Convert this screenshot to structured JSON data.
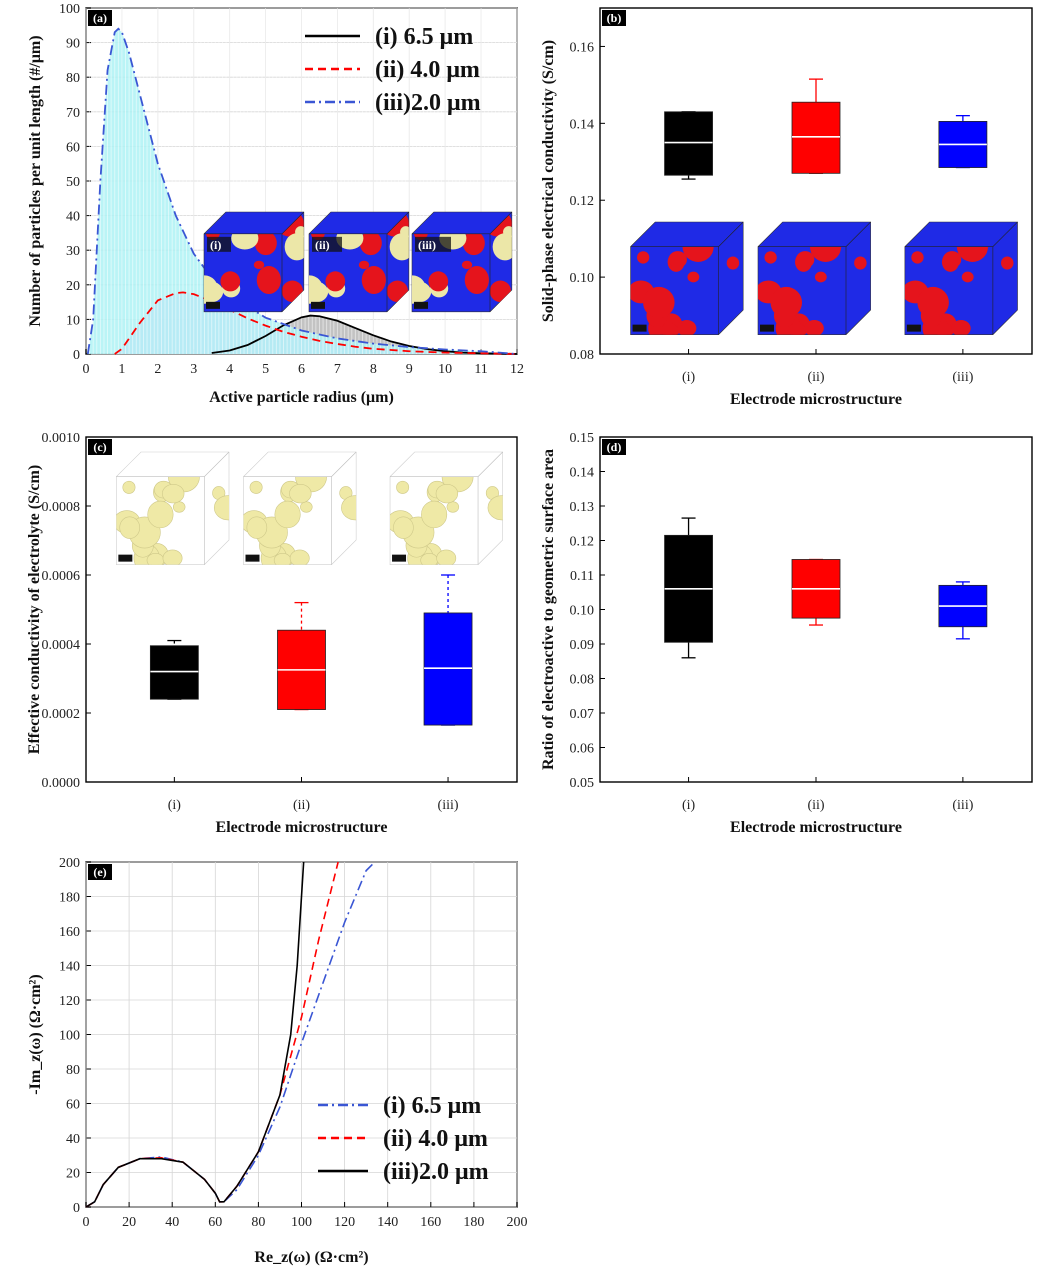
{
  "colors": {
    "black": "#000000",
    "red": "#ff0000",
    "blue": "#0000ff",
    "blue_line": "#3a56d4",
    "cyan_fill": "#aef2f4",
    "purple_fill": "#e3b8f2",
    "gray_fill": "#b9b9b9",
    "cube_blue": "#1f2ae6",
    "cube_red": "#e5141c",
    "cube_cream": "#ece7a8"
  },
  "chart_data": [
    {
      "panel": "a",
      "tag": "(a)",
      "type": "area",
      "xlabel": "Active particle radius (μm)",
      "ylabel": "Number of particles per unit length  (#/μm)",
      "xlim": [
        0,
        12
      ],
      "ylim": [
        0,
        100
      ],
      "xticks": [
        "0",
        "1",
        "2",
        "3",
        "4",
        "5",
        "6",
        "7",
        "8",
        "9",
        "10",
        "11",
        "12"
      ],
      "yticks": [
        "0",
        "10",
        "20",
        "30",
        "40",
        "50",
        "60",
        "70",
        "80",
        "90",
        "100"
      ],
      "legend_position": "top-right",
      "inset_labels": [
        "(i)",
        "(ii)",
        "(iii)"
      ],
      "series": [
        {
          "name": "(i)  6.5 μm",
          "style": "solid",
          "color": "#000000",
          "fill": "#b9b9b9",
          "x": [
            3.5,
            4.0,
            4.5,
            5.0,
            5.5,
            6.0,
            6.25,
            6.5,
            7.0,
            7.5,
            8.0,
            8.5,
            9.0,
            9.5,
            10.0,
            10.5,
            11.0,
            12.0
          ],
          "y": [
            0.3,
            1,
            2.6,
            5.2,
            8.3,
            10.6,
            11.1,
            10.9,
            9.6,
            7.5,
            5.4,
            3.6,
            2.3,
            1.4,
            0.8,
            0.4,
            0.2,
            0
          ]
        },
        {
          "name": "(ii) 4.0 μm",
          "style": "dashed",
          "color": "#ff0000",
          "fill": "#e3b8f2",
          "x": [
            0.8,
            1.0,
            1.5,
            2.0,
            2.5,
            2.7,
            3.0,
            3.5,
            4.0,
            4.5,
            5.0,
            5.5,
            6.0,
            6.5,
            7.0,
            7.5,
            8.0,
            9.0,
            10.0,
            11.0,
            12.0
          ],
          "y": [
            0,
            1.5,
            9,
            15.5,
            17.6,
            17.8,
            17.3,
            15.3,
            12.8,
            10.3,
            8.2,
            6.4,
            5.0,
            3.8,
            2.9,
            2.1,
            1.5,
            0.8,
            0.4,
            0.2,
            0
          ]
        },
        {
          "name": "(iii)2.0 μm",
          "style": "dashdot",
          "color": "#3a56d4",
          "fill": "#aef2f4",
          "x": [
            0.05,
            0.2,
            0.4,
            0.6,
            0.8,
            0.9,
            1.0,
            1.2,
            1.5,
            2.0,
            2.5,
            3.0,
            3.5,
            4.0,
            5.0,
            6.0,
            7.0,
            8.0,
            9.0,
            10.0,
            11.0,
            12.0
          ],
          "y": [
            0,
            10,
            50,
            82,
            93,
            94,
            93,
            87,
            75,
            55,
            40,
            29,
            22,
            17,
            10.5,
            6.8,
            4.5,
            3.0,
            2.0,
            1.3,
            0.8,
            0
          ]
        }
      ]
    },
    {
      "panel": "b",
      "tag": "(b)",
      "type": "box",
      "xlabel": "Electrode microstructure",
      "ylabel": "Solid-phase electrical conductivity (S/cm)",
      "ylim": [
        0.08,
        0.17
      ],
      "yticks": [
        "0.08",
        "0.10",
        "0.12",
        "0.14",
        "0.16"
      ],
      "categories": [
        "(i)",
        "(ii)",
        "(iii)"
      ],
      "boxes": [
        {
          "min": 0.1255,
          "q1": 0.1265,
          "median": 0.135,
          "q3": 0.143,
          "max": 0.143,
          "color": "#000000"
        },
        {
          "min": 0.127,
          "q1": 0.127,
          "median": 0.1365,
          "q3": 0.1455,
          "max": 0.1515,
          "color": "#ff0000"
        },
        {
          "min": 0.1285,
          "q1": 0.1285,
          "median": 0.1345,
          "q3": 0.1405,
          "max": 0.142,
          "color": "#0000ff"
        }
      ]
    },
    {
      "panel": "c",
      "tag": "(c)",
      "type": "box",
      "xlabel": "Electrode microstructure",
      "ylabel": "Effective conductivity of electrolyte (S/cm)",
      "ylim": [
        0,
        0.001
      ],
      "yticks": [
        "0.0000",
        "0.0002",
        "0.0004",
        "0.0006",
        "0.0008",
        "0.0010"
      ],
      "categories": [
        "(i)",
        "(ii)",
        "(iii)"
      ],
      "boxes": [
        {
          "min": 0.00024,
          "q1": 0.00024,
          "median": 0.00032,
          "q3": 0.000395,
          "max": 0.00041,
          "color": "#000000"
        },
        {
          "min": 0.00021,
          "q1": 0.00021,
          "median": 0.000325,
          "q3": 0.00044,
          "max": 0.00052,
          "color": "#ff0000"
        },
        {
          "min": 0.000165,
          "q1": 0.000165,
          "median": 0.00033,
          "q3": 0.00049,
          "max": 0.0006,
          "color": "#0000ff"
        }
      ]
    },
    {
      "panel": "d",
      "tag": "(d)",
      "type": "box",
      "xlabel": "Electrode microstructure",
      "ylabel": "Ratio of electroactive to geometric surface area",
      "ylim": [
        0.05,
        0.15
      ],
      "yticks": [
        "0.05",
        "0.06",
        "0.07",
        "0.08",
        "0.09",
        "0.10",
        "0.11",
        "0.12",
        "0.13",
        "0.14",
        "0.15"
      ],
      "categories": [
        "(i)",
        "(ii)",
        "(iii)"
      ],
      "boxes": [
        {
          "min": 0.086,
          "q1": 0.0905,
          "median": 0.106,
          "q3": 0.1215,
          "max": 0.1265,
          "color": "#000000"
        },
        {
          "min": 0.0955,
          "q1": 0.0975,
          "median": 0.106,
          "q3": 0.1145,
          "max": 0.1145,
          "color": "#ff0000"
        },
        {
          "min": 0.0915,
          "q1": 0.095,
          "median": 0.101,
          "q3": 0.107,
          "max": 0.108,
          "color": "#0000ff"
        }
      ]
    },
    {
      "panel": "e",
      "tag": "(e)",
      "type": "line",
      "xlabel": "Re_z(ω) (Ω·cm²)",
      "ylabel": "-Im_z(ω) (Ω·cm²)",
      "xlim": [
        0,
        200
      ],
      "ylim": [
        0,
        200
      ],
      "xticks": [
        "0",
        "20",
        "40",
        "60",
        "80",
        "100",
        "120",
        "140",
        "160",
        "180",
        "200"
      ],
      "yticks": [
        "0",
        "20",
        "40",
        "60",
        "80",
        "100",
        "120",
        "140",
        "160",
        "180",
        "200"
      ],
      "legend_position": "bottom-right",
      "series": [
        {
          "name": "(i)  6.5 μm",
          "style": "dashdot",
          "color": "#3a56d4",
          "x": [
            0,
            4,
            8,
            15,
            25,
            35,
            45,
            55,
            60,
            62,
            64,
            70,
            80,
            90,
            100,
            110,
            120,
            130,
            134
          ],
          "y": [
            0,
            3,
            13,
            23,
            28,
            29,
            26,
            16,
            8,
            3,
            3,
            10,
            30,
            58,
            95,
            130,
            165,
            195,
            200
          ]
        },
        {
          "name": "(ii) 4.0 μm",
          "style": "dashed",
          "color": "#ff0000",
          "x": [
            0,
            4,
            8,
            15,
            25,
            35,
            45,
            55,
            60,
            62,
            64,
            70,
            80,
            90,
            100,
            108,
            115,
            117
          ],
          "y": [
            0,
            3,
            13,
            23,
            28,
            28.5,
            26,
            16,
            8,
            3,
            3,
            12,
            32,
            65,
            110,
            155,
            190,
            200
          ]
        },
        {
          "name": "(iii)2.0 μm",
          "style": "solid",
          "color": "#000000",
          "x": [
            0,
            4,
            8,
            15,
            25,
            35,
            45,
            55,
            60,
            62,
            64,
            70,
            80,
            90,
            95,
            98,
            100,
            101
          ],
          "y": [
            0,
            3,
            13,
            23,
            28,
            28,
            26,
            16,
            8,
            3,
            3,
            12,
            32,
            65,
            100,
            140,
            180,
            200
          ]
        }
      ]
    }
  ]
}
